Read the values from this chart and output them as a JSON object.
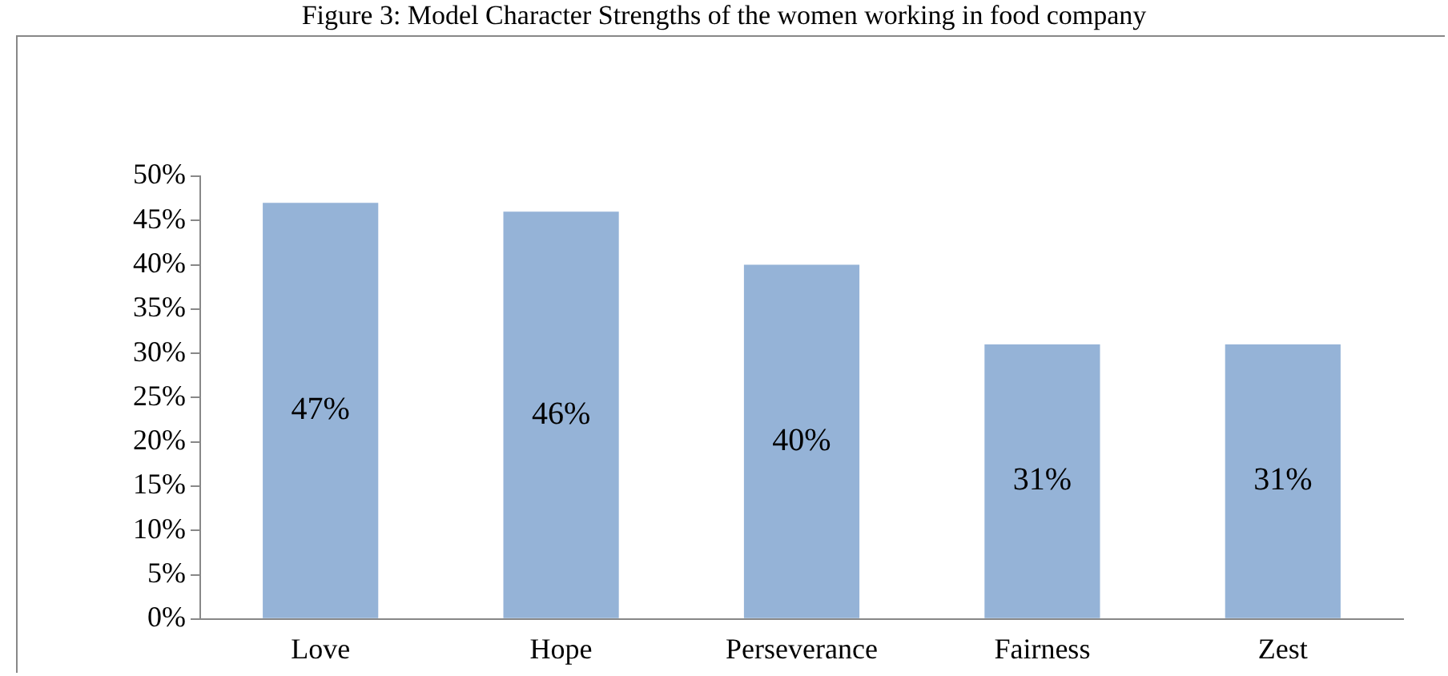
{
  "chart_data": {
    "type": "bar",
    "title": "Figure 3: Model Character Strengths of the women working in food company",
    "categories": [
      "Love",
      "Hope",
      "Perseverance",
      "Fairness",
      "Zest"
    ],
    "values": [
      47,
      46,
      40,
      31,
      31
    ],
    "value_labels": [
      "47%",
      "46%",
      "40%",
      "31%",
      "31%"
    ],
    "color": "#95b3d7",
    "ylim": [
      0,
      50
    ],
    "yticks": [
      {
        "value": 0,
        "label": "0%"
      },
      {
        "value": 5,
        "label": "5%"
      },
      {
        "value": 10,
        "label": "10%"
      },
      {
        "value": 15,
        "label": "15%"
      },
      {
        "value": 20,
        "label": "20%"
      },
      {
        "value": 25,
        "label": "25%"
      },
      {
        "value": 30,
        "label": "30%"
      },
      {
        "value": 35,
        "label": "35%"
      },
      {
        "value": 40,
        "label": "40%"
      },
      {
        "value": 45,
        "label": "45%"
      },
      {
        "value": 50,
        "label": "50%"
      }
    ],
    "grid": false,
    "legend": false
  }
}
